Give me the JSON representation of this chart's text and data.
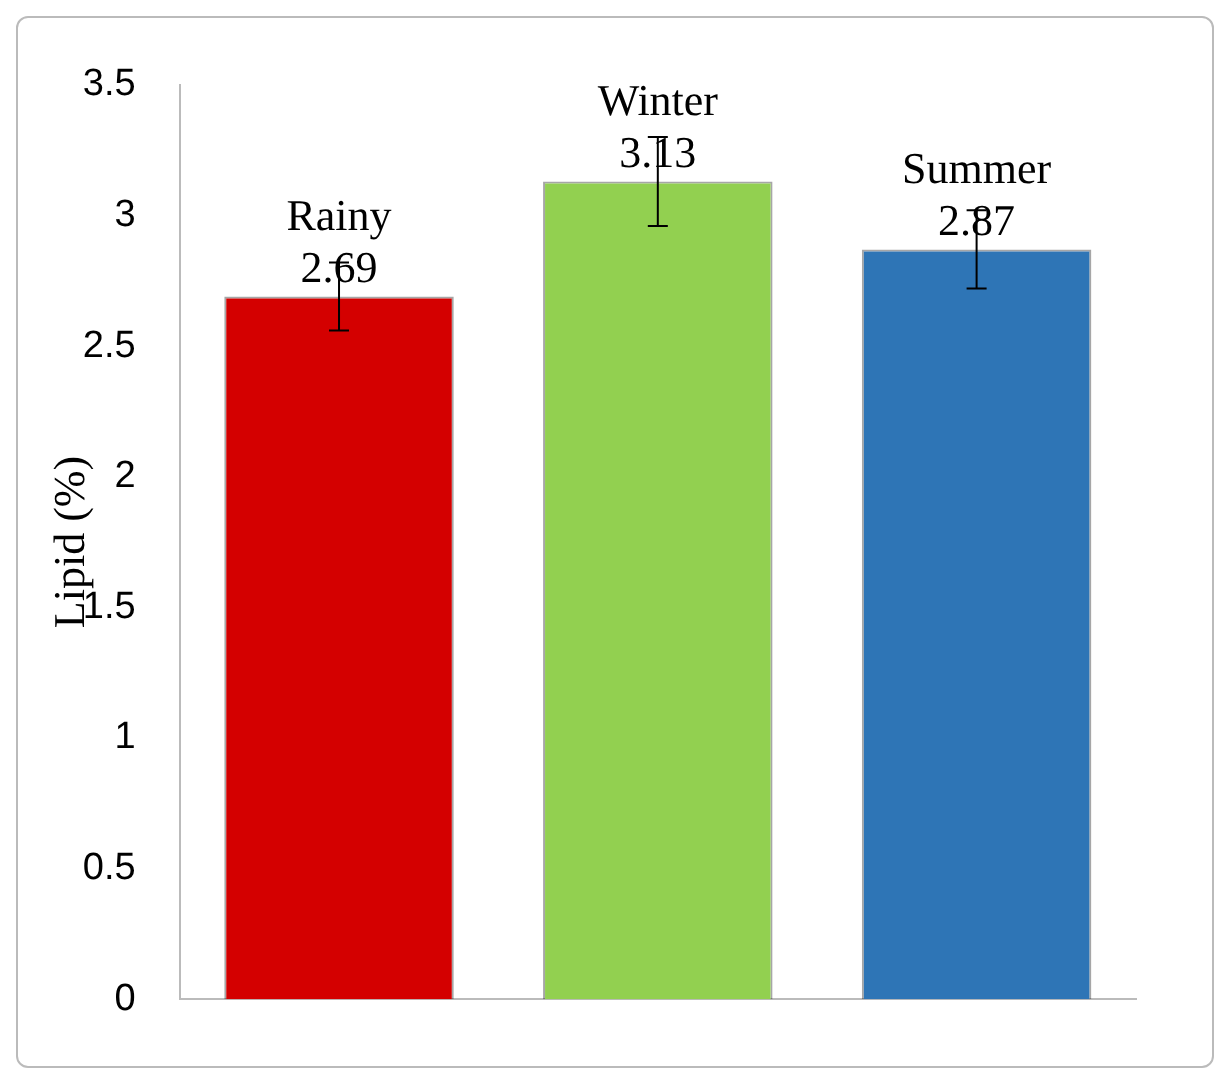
{
  "chart_data": {
    "type": "bar",
    "ylabel": "Lipid (%)",
    "categories": [
      "Rainy",
      "Winter",
      "Summer"
    ],
    "values": [
      2.69,
      3.13,
      2.87
    ],
    "colors": [
      "#d40000",
      "#92d050",
      "#2e75b6"
    ],
    "errors": [
      0.13,
      0.17,
      0.15
    ],
    "ylim": [
      0,
      3.5
    ],
    "yticks": [
      0,
      0.5,
      1,
      1.5,
      2,
      2.5,
      3,
      3.5
    ],
    "data_labels": true,
    "tick_labels": "y",
    "grid": false,
    "legend": false
  }
}
